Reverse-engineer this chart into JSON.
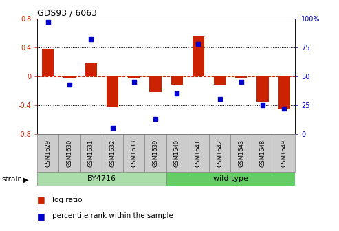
{
  "title": "GDS93 / 6063",
  "samples": [
    "GSM1629",
    "GSM1630",
    "GSM1631",
    "GSM1632",
    "GSM1633",
    "GSM1639",
    "GSM1640",
    "GSM1641",
    "GSM1642",
    "GSM1643",
    "GSM1648",
    "GSM1649"
  ],
  "log_ratios": [
    0.38,
    -0.02,
    0.18,
    -0.42,
    -0.03,
    -0.22,
    -0.12,
    0.55,
    -0.12,
    -0.02,
    -0.35,
    -0.45
  ],
  "percentile_ranks": [
    97,
    43,
    82,
    5,
    45,
    13,
    35,
    78,
    30,
    45,
    25,
    22
  ],
  "bar_color": "#cc2200",
  "square_color": "#0000cc",
  "ylim_left": [
    -0.8,
    0.8
  ],
  "ylim_right": [
    0,
    100
  ],
  "yticks_left": [
    -0.8,
    -0.4,
    0.0,
    0.4,
    0.8
  ],
  "ytick_labels_left": [
    "-0.8",
    "-0.4",
    "0",
    "0.4",
    "0.8"
  ],
  "yticks_right": [
    0,
    25,
    50,
    75,
    100
  ],
  "ytick_labels_right": [
    "0",
    "25",
    "50",
    "75",
    "100%"
  ],
  "hlines": [
    -0.4,
    0.0,
    0.4
  ],
  "hline_styles": [
    "dotted",
    "dashed_red",
    "dotted"
  ],
  "strain_groups": [
    {
      "label": "BY4716",
      "start": 0,
      "end": 5,
      "color": "#aaddaa"
    },
    {
      "label": "wild type",
      "start": 6,
      "end": 11,
      "color": "#66cc66"
    }
  ],
  "strain_label": "strain",
  "legend_items": [
    {
      "label": "log ratio",
      "color": "#cc2200"
    },
    {
      "label": "percentile rank within the sample",
      "color": "#0000cc"
    }
  ],
  "background_color": "#ffffff",
  "tick_label_color_left": "#cc2200",
  "tick_label_color_right": "#0000cc",
  "bar_width": 0.55,
  "square_size": 25,
  "xtick_bg": "#cccccc"
}
